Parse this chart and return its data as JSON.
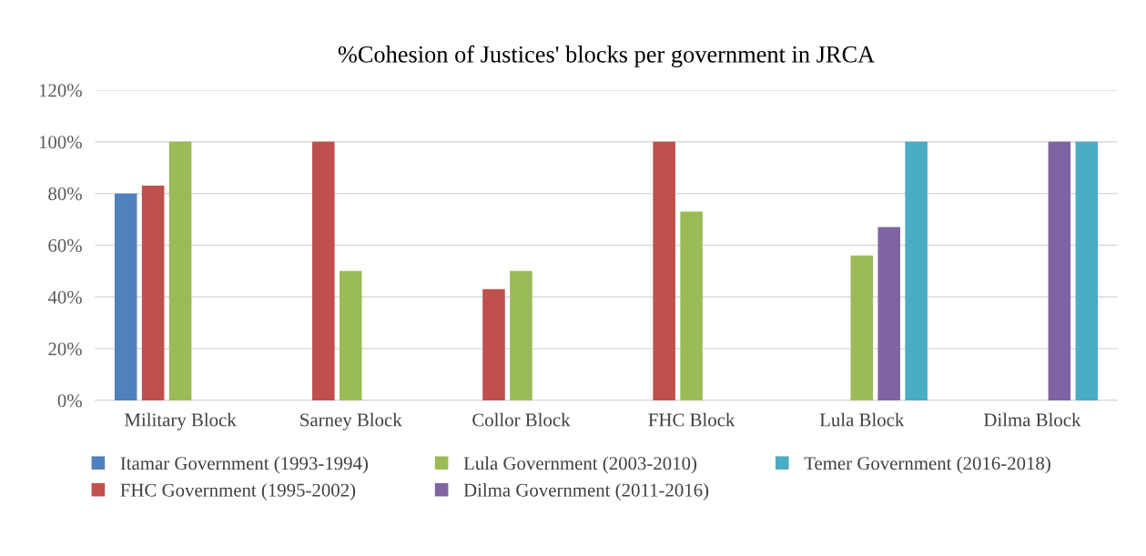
{
  "chart_data": {
    "type": "bar",
    "title": "%Cohesion of Justices' blocks per government in JRCA",
    "categories": [
      "Military Block",
      "Sarney Block",
      "Collor Block",
      "FHC Block",
      "Lula Block",
      "Dilma Block"
    ],
    "series": [
      {
        "name": "Itamar Government (1993-1994)",
        "color": "#4f81bd",
        "values": [
          80,
          null,
          null,
          null,
          null,
          null
        ]
      },
      {
        "name": "FHC Government (1995-2002)",
        "color": "#c0504d",
        "values": [
          83,
          100,
          43,
          100,
          null,
          null
        ]
      },
      {
        "name": "Lula Government (2003-2010)",
        "color": "#9bbb59",
        "values": [
          100,
          50,
          50,
          73,
          56,
          null
        ]
      },
      {
        "name": "Dilma Government (2011-2016)",
        "color": "#8064a2",
        "values": [
          null,
          null,
          null,
          null,
          67,
          100
        ]
      },
      {
        "name": "Temer Government (2016-2018)",
        "color": "#4bacc6",
        "values": [
          null,
          null,
          null,
          null,
          100,
          100
        ]
      }
    ],
    "ylim": [
      0,
      120
    ],
    "yticks": [
      {
        "value": 0,
        "label": "0%"
      },
      {
        "value": 20,
        "label": "20%"
      },
      {
        "value": 40,
        "label": "40%"
      },
      {
        "value": 60,
        "label": "60%"
      },
      {
        "value": 80,
        "label": "80%"
      },
      {
        "value": 100,
        "label": "100%"
      },
      {
        "value": 120,
        "label": "120%"
      }
    ],
    "grid": "y",
    "legend": "bottom"
  }
}
